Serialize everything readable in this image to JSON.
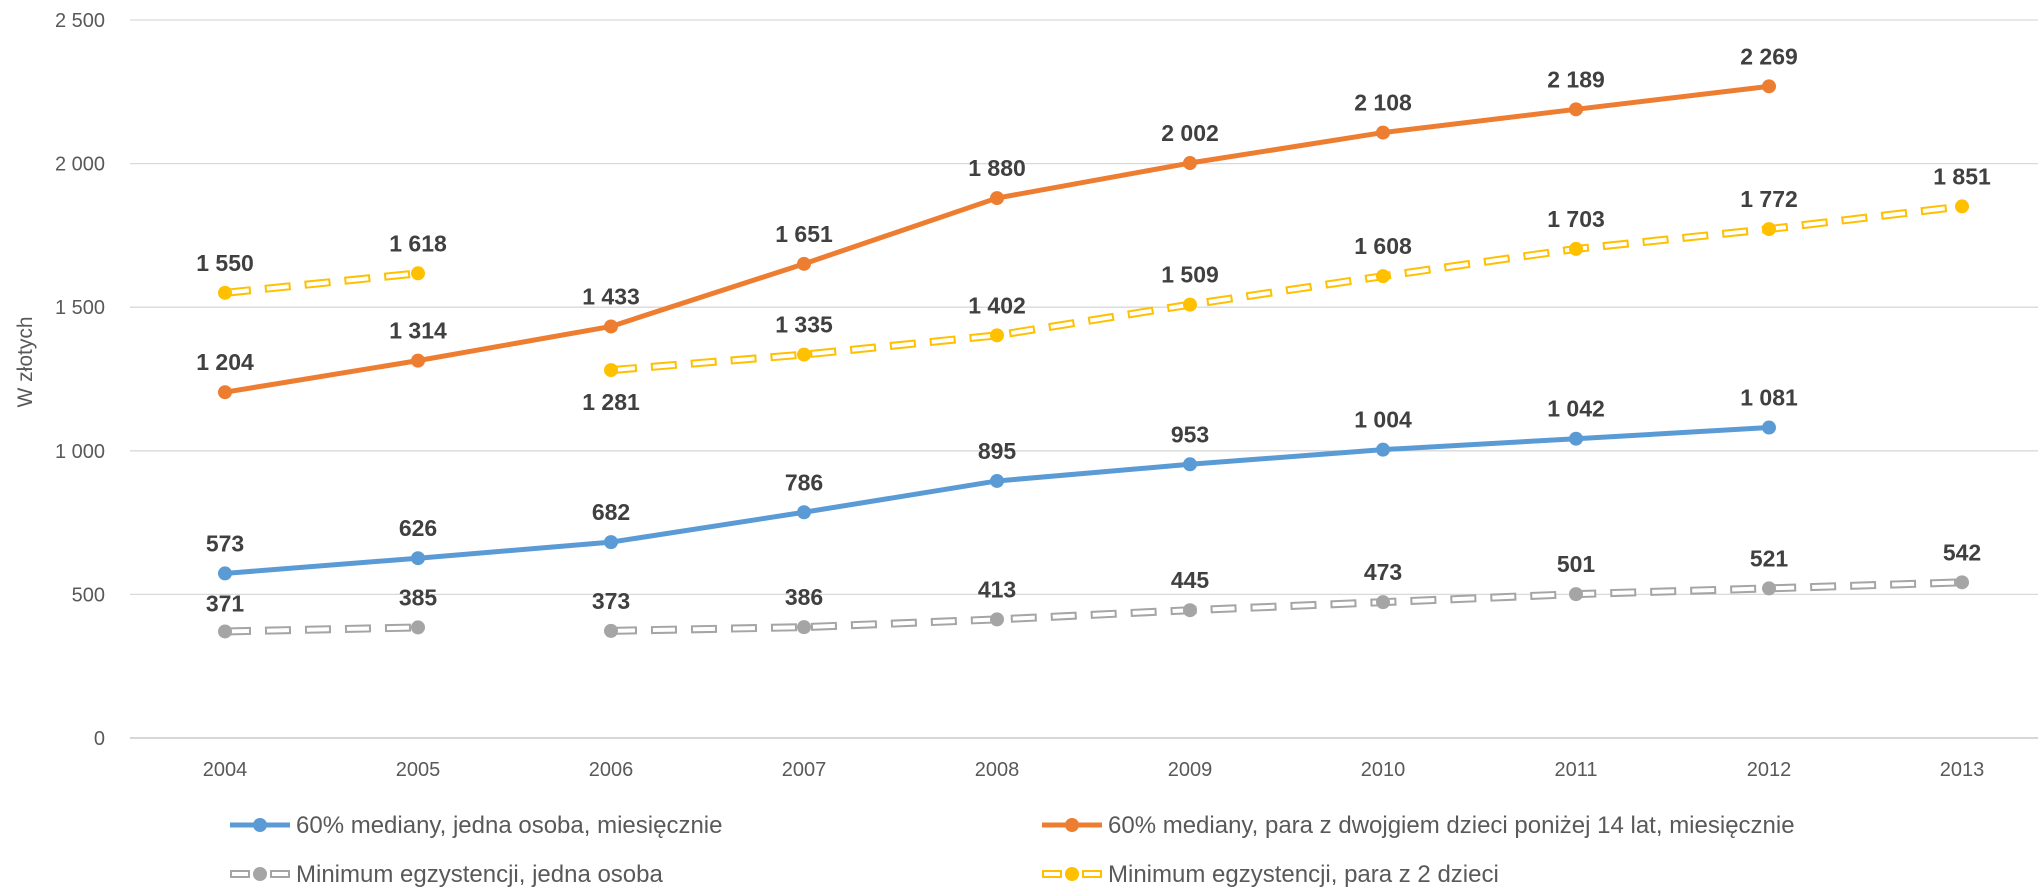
{
  "chart_data": {
    "type": "line",
    "ylabel": "W złotych",
    "ylim": [
      0,
      2500
    ],
    "y_ticks": [
      0,
      500,
      1000,
      1500,
      2000,
      2500
    ],
    "y_tick_labels": [
      "0",
      "500",
      "1 000",
      "1 500",
      "2 000",
      "2 500"
    ],
    "x": [
      "2004",
      "2005",
      "2006",
      "2007",
      "2008",
      "2009",
      "2010",
      "2011",
      "2012",
      "2013"
    ],
    "grid": "horizontal",
    "legend_position": "bottom",
    "series": [
      {
        "name": "60% mediany, jedna osoba, miesięcznie",
        "color": "#5B9BD5",
        "style": "solid",
        "values": [
          573,
          626,
          682,
          786,
          895,
          953,
          1004,
          1042,
          1081,
          null
        ],
        "labels": [
          "573",
          "626",
          "682",
          "786",
          "895",
          "953",
          "1 004",
          "1 042",
          "1 081",
          null
        ]
      },
      {
        "name": "60% mediany, para z dwojgiem dzieci poniżej 14 lat, miesięcznie",
        "color": "#ED7D31",
        "style": "solid",
        "values": [
          1204,
          1314,
          1433,
          1651,
          1880,
          2002,
          2108,
          2189,
          2269,
          null
        ],
        "labels": [
          "1 204",
          "1 314",
          "1 433",
          "1 651",
          "1 880",
          "2 002",
          "2 108",
          "2 189",
          "2 269",
          null
        ]
      },
      {
        "name": "Minimum egzystencji, jedna osoba",
        "color": "#A5A5A5",
        "style": "dashed",
        "values": [
          371,
          385,
          373,
          386,
          413,
          445,
          473,
          501,
          521,
          542
        ],
        "labels": [
          "371",
          "385",
          "373",
          "386",
          "413",
          "445",
          "473",
          "501",
          "521",
          "542"
        ],
        "breaks_after_index": [
          1
        ]
      },
      {
        "name": "Minimum egzystencji, para z 2 dzieci",
        "color": "#FFC000",
        "style": "dashed",
        "values": [
          1550,
          1618,
          1281,
          1335,
          1402,
          1509,
          1608,
          1703,
          1772,
          1851
        ],
        "labels": [
          "1 550",
          "1 618",
          "1 281",
          "1 335",
          "1 402",
          "1 509",
          "1 608",
          "1 703",
          "1 772",
          "1 851"
        ],
        "breaks_after_index": [
          1
        ]
      }
    ]
  }
}
